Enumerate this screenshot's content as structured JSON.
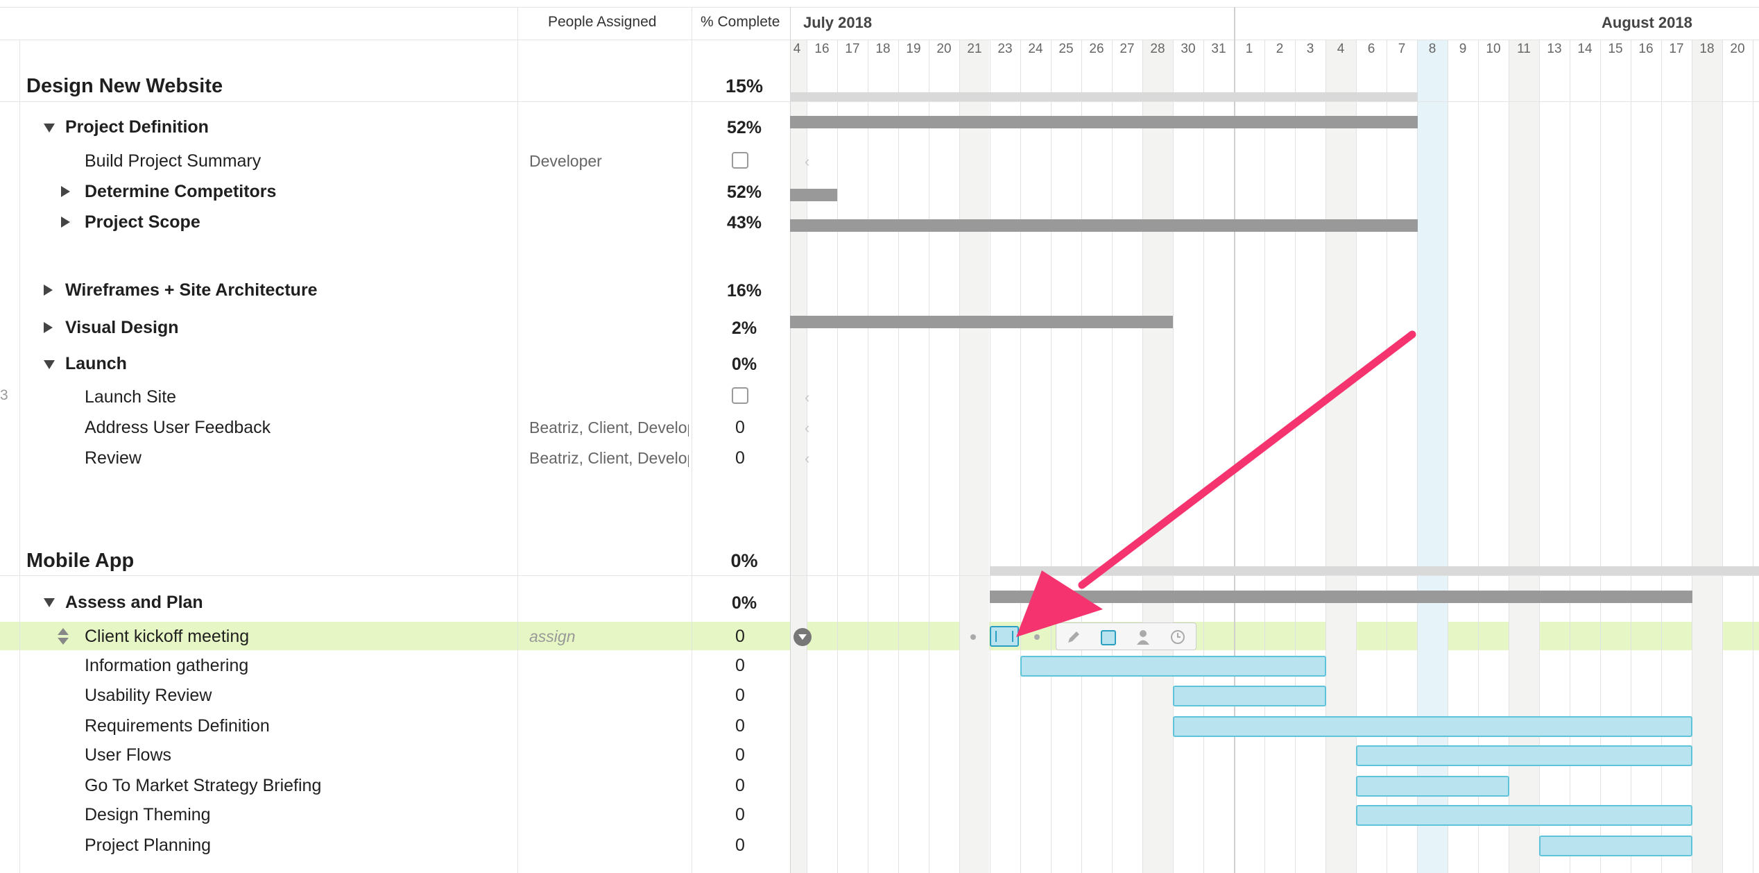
{
  "header": {
    "people_col": "People Assigned",
    "pct_col": "% Complete",
    "month1": "July 2018",
    "month2": "August 2018",
    "days": [
      "4",
      "16",
      "17",
      "18",
      "19",
      "20",
      "21",
      "23",
      "24",
      "25",
      "26",
      "27",
      "28",
      "30",
      "31",
      "1",
      "2",
      "3",
      "4",
      "6",
      "7",
      "8",
      "9",
      "10",
      "11",
      "13",
      "14",
      "15",
      "16",
      "17",
      "18",
      "20"
    ]
  },
  "rows": {
    "g1": {
      "label": "Design New Website",
      "pct": "15%"
    },
    "p1": {
      "label": "Project Definition",
      "pct": "52%"
    },
    "t1": {
      "label": "Build Project Summary",
      "people": "Developer"
    },
    "p2": {
      "label": "Determine Competitors",
      "pct": "52%"
    },
    "p3": {
      "label": "Project Scope",
      "pct": "43%"
    },
    "p4": {
      "label": "Wireframes + Site Architecture",
      "pct": "16%"
    },
    "p5": {
      "label": "Visual Design",
      "pct": "2%"
    },
    "p6": {
      "label": "Launch",
      "pct": "0%"
    },
    "t2": {
      "label": "Launch Site"
    },
    "t3": {
      "label": "Address User Feedback",
      "people": "Beatriz, Client, Developer",
      "pct": "0"
    },
    "t4": {
      "label": "Review",
      "people": "Beatriz, Client, Developer",
      "pct": "0"
    },
    "g2": {
      "label": "Mobile App",
      "pct": "0%"
    },
    "p7": {
      "label": "Assess and Plan",
      "pct": "0%"
    },
    "t5": {
      "label": "Client kickoff meeting",
      "people": "assign",
      "pct": "0"
    },
    "t6": {
      "label": "Information gathering",
      "pct": "0"
    },
    "t7": {
      "label": "Usability Review",
      "pct": "0"
    },
    "t8": {
      "label": "Requirements Definition",
      "pct": "0"
    },
    "t9": {
      "label": "User Flows",
      "pct": "0"
    },
    "t10": {
      "label": "Go To Market Strategy Briefing",
      "pct": "0"
    },
    "t11": {
      "label": "Design Theming",
      "pct": "0"
    },
    "t12": {
      "label": "Project Planning",
      "pct": "0"
    }
  },
  "margin_number": "3",
  "colors": {
    "highlight_row": "#e6f7c5",
    "arrow": "#f5336f",
    "bar_blue": "#b9e4ef",
    "bar_gray": "#999999",
    "today": "#e6f3f8"
  }
}
